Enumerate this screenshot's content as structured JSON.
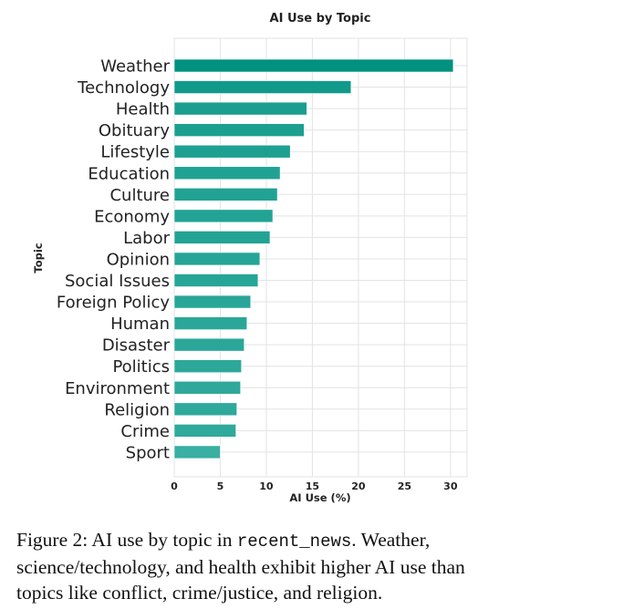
{
  "chart_data": {
    "type": "bar",
    "orientation": "horizontal",
    "title": "AI Use by Topic",
    "xlabel": "AI Use (%)",
    "ylabel": "Topic",
    "xlim": [
      0,
      31.8
    ],
    "xticks": [
      0,
      5,
      10,
      15,
      20,
      25,
      30
    ],
    "grid": true,
    "categories": [
      "Weather",
      "Technology",
      "Health",
      "Obituary",
      "Lifestyle",
      "Education",
      "Culture",
      "Economy",
      "Labor",
      "Opinion",
      "Social Issues",
      "Foreign Policy",
      "Human",
      "Disaster",
      "Politics",
      "Environment",
      "Religion",
      "Crime",
      "Sport"
    ],
    "values": [
      30.3,
      19.2,
      14.4,
      14.1,
      12.6,
      11.5,
      11.2,
      10.7,
      10.4,
      9.3,
      9.1,
      8.3,
      7.9,
      7.6,
      7.3,
      7.2,
      6.8,
      6.7,
      5.0
    ],
    "colors": {
      "max": "#00917f",
      "min": "#3aafa2",
      "grid": "#e3e3e3"
    }
  },
  "caption": {
    "prefix": "Figure 2: AI use by topic in ",
    "code": "recent_news",
    "suffix": ". Weather, science/technology, and health exhibit higher AI use than topics like conflict, crime/justice, and religion."
  }
}
